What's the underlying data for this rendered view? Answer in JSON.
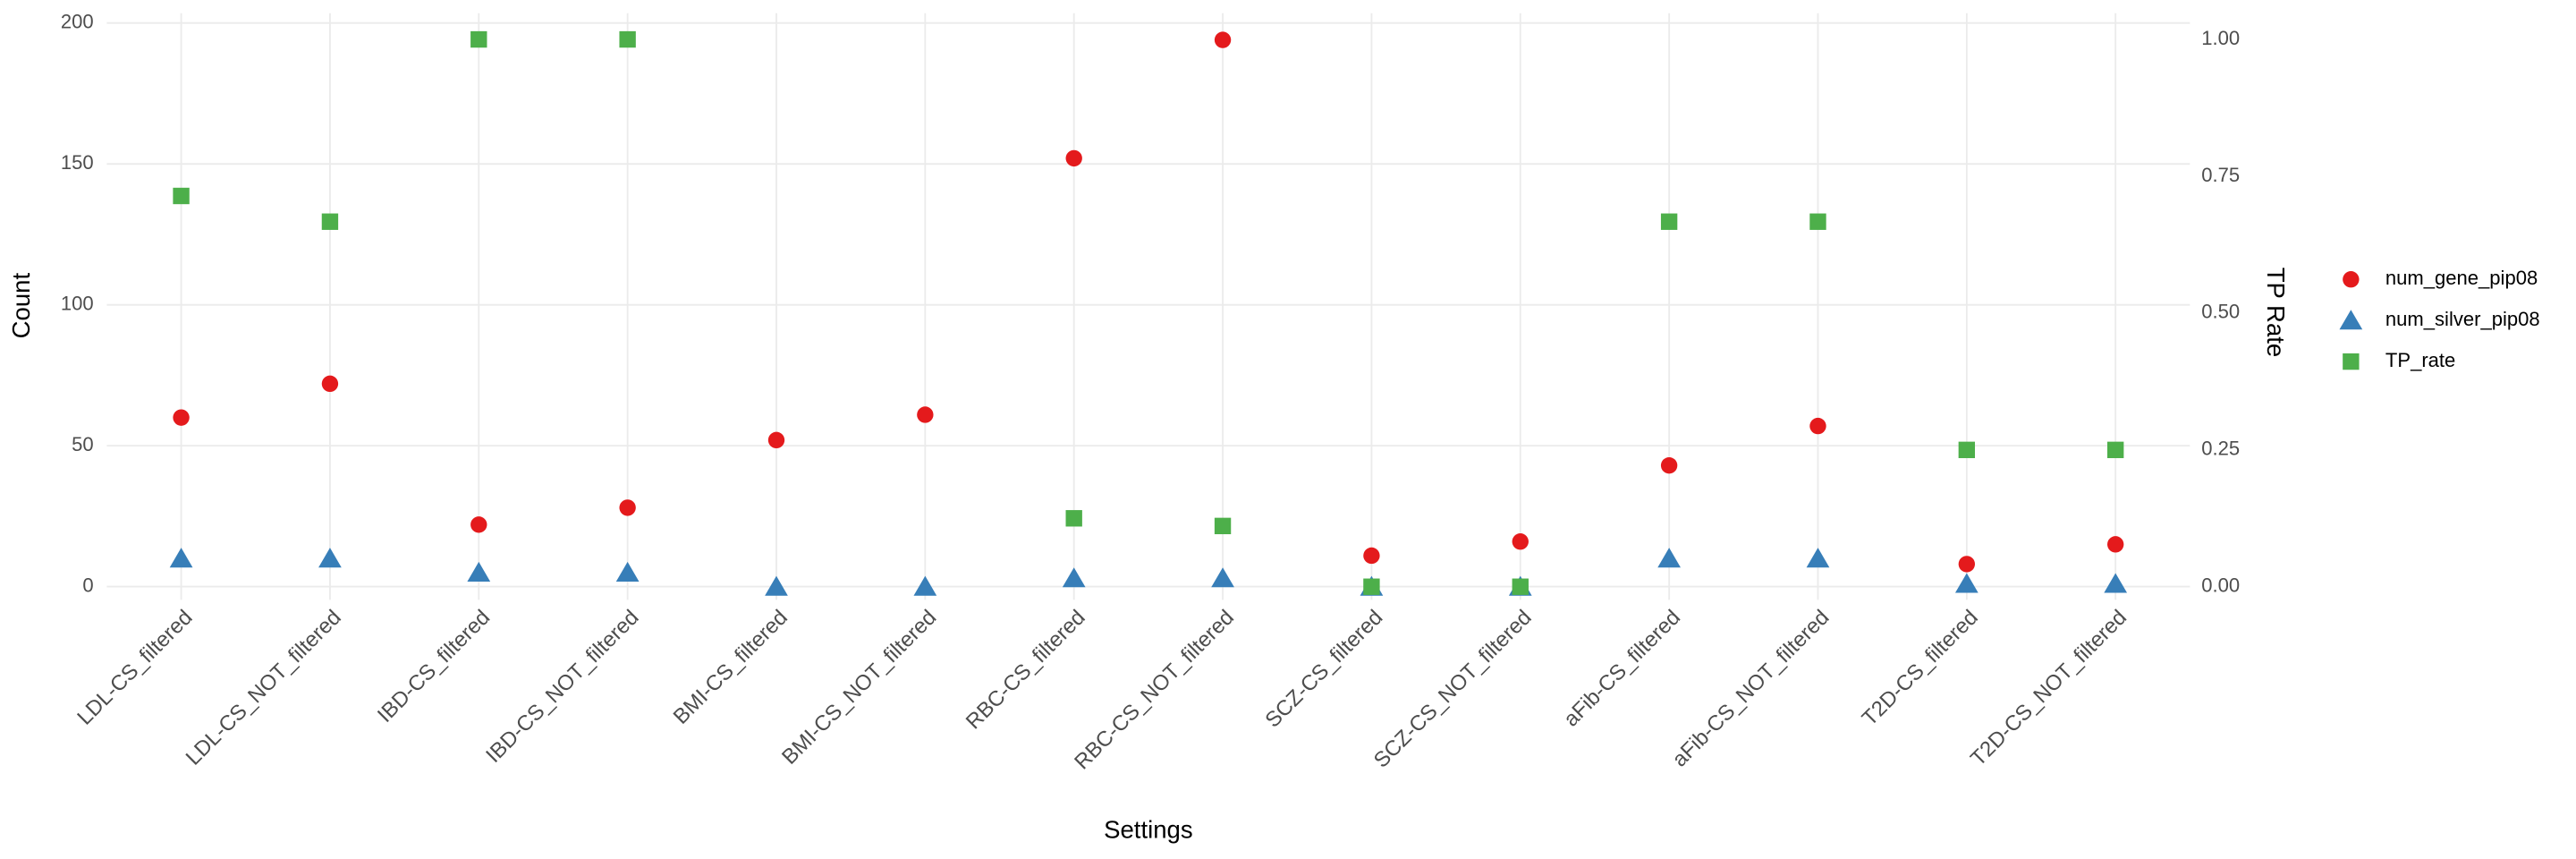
{
  "chart_data": {
    "type": "scatter",
    "categories": [
      "LDL-CS_filtered",
      "LDL-CS_NOT_filtered",
      "IBD-CS_filtered",
      "IBD-CS_NOT_filtered",
      "BMI-CS_filtered",
      "BMI-CS_NOT_filtered",
      "RBC-CS_filtered",
      "RBC-CS_NOT_filtered",
      "SCZ-CS_filtered",
      "SCZ-CS_NOT_filtered",
      "aFib-CS_filtered",
      "aFib-CS_NOT_filtered",
      "T2D-CS_filtered",
      "T2D-CS_NOT_filtered"
    ],
    "series": [
      {
        "name": "num_gene_pip08",
        "color": "#e41a1c",
        "shape": "circle",
        "values": [
          60,
          72,
          22,
          28,
          52,
          61,
          152,
          194,
          11,
          16,
          43,
          57,
          8,
          15
        ]
      },
      {
        "name": "num_silver_pip08",
        "color": "#377eb8",
        "shape": "triangle",
        "values": [
          10,
          10,
          5,
          5,
          0,
          0,
          3,
          3,
          0,
          0,
          10,
          10,
          1,
          1
        ]
      },
      {
        "name": "TP_rate",
        "color": "#4daf4a",
        "shape": "square",
        "axis": "y2",
        "values": [
          0.714,
          0.667,
          1,
          1,
          null,
          null,
          0.125,
          0.111,
          0,
          0,
          0.667,
          0.667,
          0.25,
          0.25
        ]
      }
    ],
    "xlabel": "Settings",
    "ylabel": "Count",
    "y2label": "TP Rate",
    "ylim": [
      -4.7,
      203.5
    ],
    "yticks": [
      0,
      50,
      100,
      150,
      200
    ],
    "y2lim": [
      -0.024,
      1.048
    ],
    "y2ticks": [
      {
        "value": 0,
        "label": "0.00"
      },
      {
        "value": 0.25,
        "label": "0.25"
      },
      {
        "value": 0.5,
        "label": "0.50"
      },
      {
        "value": 0.75,
        "label": "0.75"
      },
      {
        "value": 1,
        "label": "1.00"
      }
    ],
    "grid": true,
    "legend": "right"
  }
}
